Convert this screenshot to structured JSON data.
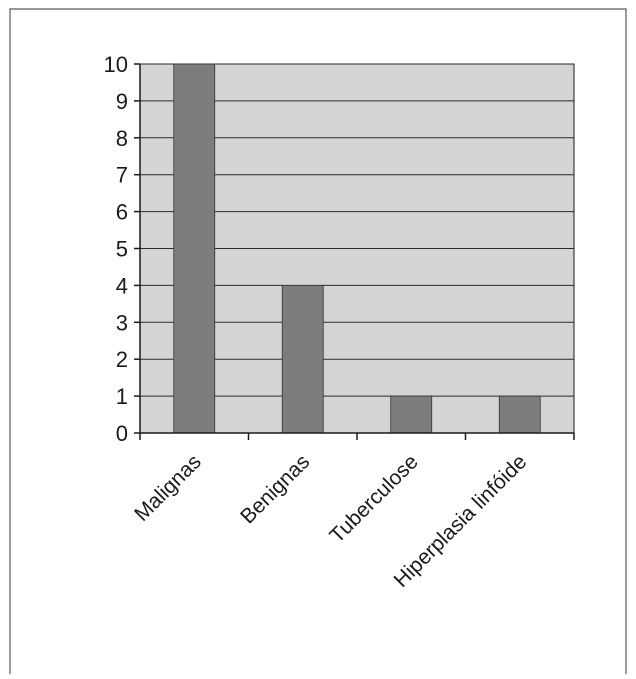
{
  "chart_data": {
    "type": "bar",
    "categories": [
      "Malignas",
      "Benignas",
      "Tuberculose",
      "Hiperplasia linfóide"
    ],
    "values": [
      10,
      4,
      1,
      1
    ],
    "title": "",
    "xlabel": "",
    "ylabel": "",
    "ylim": [
      0,
      10
    ],
    "yticks": [
      0,
      1,
      2,
      3,
      4,
      5,
      6,
      7,
      8,
      9,
      10
    ],
    "grid": true,
    "legend": "none"
  },
  "colors": {
    "plot_background": "#d4d4d4",
    "bar_fill": "#7d7d7d",
    "gridline": "#2a2a2a",
    "axis": "#1a1a1a",
    "frame_border": "#5a5a5a"
  }
}
